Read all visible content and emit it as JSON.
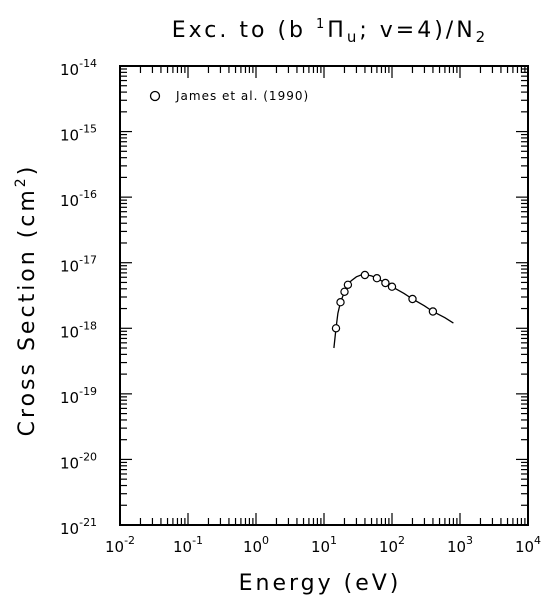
{
  "chart_data": {
    "type": "scatter",
    "title": "Exc. to (b ¹Πᵤ; v=4)/N₂",
    "xlabel": "Energy (eV)",
    "ylabel": "Cross Section (cm²)",
    "x_scale": "log",
    "y_scale": "log",
    "xlim": [
      0.01,
      10000
    ],
    "ylim": [
      1e-21,
      1e-14
    ],
    "grid": false,
    "legend_position": "top-left",
    "x_ticks": [
      {
        "base": "10",
        "exp": "-2"
      },
      {
        "base": "10",
        "exp": "-1"
      },
      {
        "base": "10",
        "exp": "0"
      },
      {
        "base": "10",
        "exp": "1"
      },
      {
        "base": "10",
        "exp": "2"
      },
      {
        "base": "10",
        "exp": "3"
      },
      {
        "base": "10",
        "exp": "4"
      }
    ],
    "y_ticks": [
      {
        "base": "10",
        "exp": "-14"
      },
      {
        "base": "10",
        "exp": "-15"
      },
      {
        "base": "10",
        "exp": "-16"
      },
      {
        "base": "10",
        "exp": "-17"
      },
      {
        "base": "10",
        "exp": "-18"
      },
      {
        "base": "10",
        "exp": "-19"
      },
      {
        "base": "10",
        "exp": "-20"
      },
      {
        "base": "10",
        "exp": "-21"
      }
    ],
    "series": [
      {
        "name": "James et al. (1990)",
        "marker": "open-circle",
        "x": [
          15,
          17.5,
          20,
          22.5,
          40,
          60,
          80,
          100,
          200,
          400
        ],
        "y": [
          1e-18,
          2.5e-18,
          3.6e-18,
          4.6e-18,
          6.5e-18,
          5.8e-18,
          4.9e-18,
          4.3e-18,
          2.8e-18,
          1.8e-18
        ]
      },
      {
        "marker": "line",
        "x": [
          14,
          15,
          16,
          17.5,
          20,
          22.5,
          25,
          30,
          35,
          40,
          50,
          60,
          70,
          80,
          100,
          150,
          200,
          300,
          400,
          600,
          800
        ],
        "y": [
          5e-19,
          1e-18,
          1.7e-18,
          2.5e-18,
          3.6e-18,
          4.6e-18,
          5.3e-18,
          6.1e-18,
          6.5e-18,
          6.6e-18,
          6.3e-18,
          5.8e-18,
          5.3e-18,
          4.9e-18,
          4.3e-18,
          3.4e-18,
          2.8e-18,
          2.2e-18,
          1.8e-18,
          1.45e-18,
          1.2e-18
        ]
      }
    ]
  },
  "title": {
    "prefix": "Exc.  to (b ",
    "sup": "1",
    "mid": "Π",
    "sub": "u",
    "suffix": "; v=4)/N",
    "sub2": "2"
  },
  "xlabel": "Energy (eV)",
  "ylabel": {
    "prefix": "Cross Section (cm",
    "sup": "2",
    "suffix": ")"
  },
  "legend": {
    "label": "James et al. (1990)"
  },
  "colors": {
    "ink": "#000000",
    "background": "#ffffff"
  }
}
